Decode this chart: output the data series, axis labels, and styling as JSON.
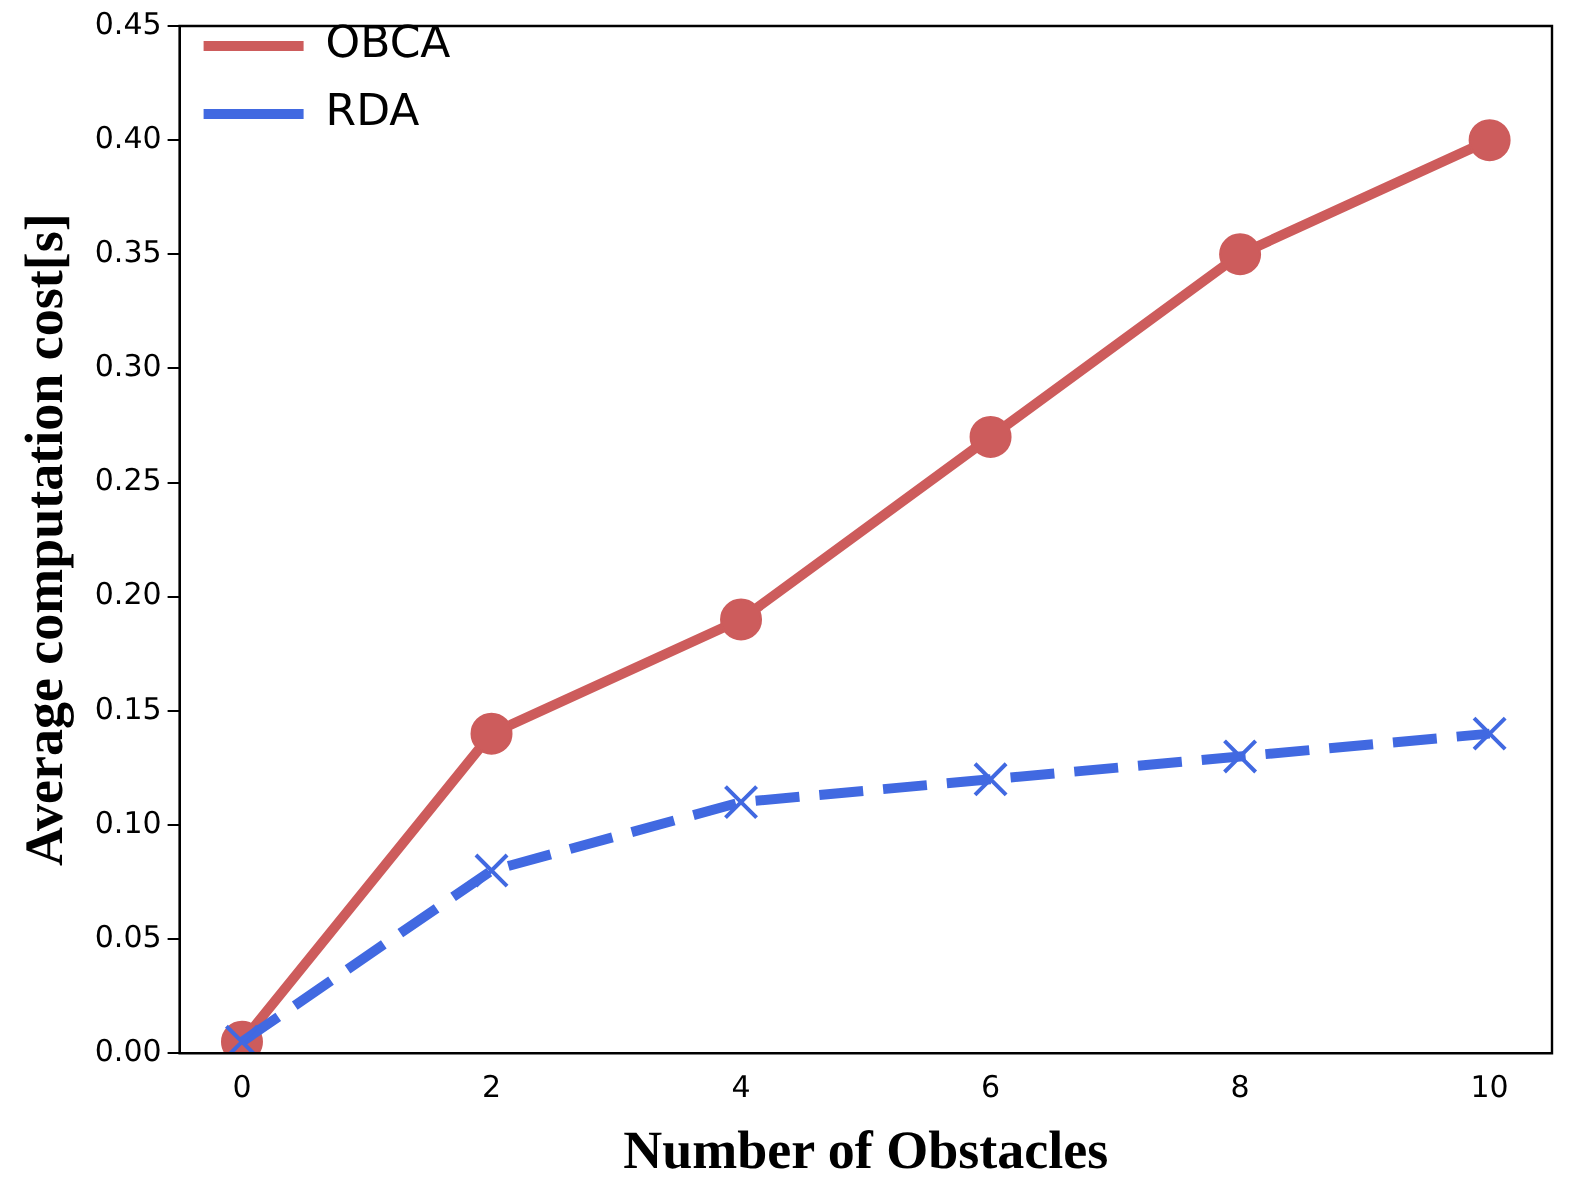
{
  "chart_data": {
    "type": "line",
    "xlabel": "Number of Obstacles",
    "ylabel": "Average computation cost[s]",
    "x": [
      0,
      2,
      4,
      6,
      8,
      10
    ],
    "series": [
      {
        "name": "OBCA",
        "color": "#cd5c5c",
        "values": [
          0.005,
          0.14,
          0.19,
          0.27,
          0.35,
          0.4
        ],
        "marker": "circle",
        "line_style": "solid"
      },
      {
        "name": "RDA",
        "color": "#4169e1",
        "values": [
          0.005,
          0.08,
          0.11,
          0.12,
          0.13,
          0.14
        ],
        "marker": "cross",
        "line_style": "dashed"
      }
    ],
    "xlim": [
      -0.5,
      10.5
    ],
    "xticks": [
      0,
      2,
      4,
      6,
      8,
      10
    ],
    "ylim": [
      0,
      0.45
    ],
    "yticks": [
      {
        "value": 0,
        "label": "0.00"
      },
      {
        "value": 0.05,
        "label": "0.05"
      },
      {
        "value": 0.1,
        "label": "0.10"
      },
      {
        "value": 0.15,
        "label": "0.15"
      },
      {
        "value": 0.2,
        "label": "0.20"
      },
      {
        "value": 0.25,
        "label": "0.25"
      },
      {
        "value": 0.3,
        "label": "0.30"
      },
      {
        "value": 0.35,
        "label": "0.35"
      },
      {
        "value": 0.4,
        "label": "0.40"
      },
      {
        "value": 0.45,
        "label": "0.45"
      }
    ],
    "grid": false,
    "legend": "top left"
  }
}
